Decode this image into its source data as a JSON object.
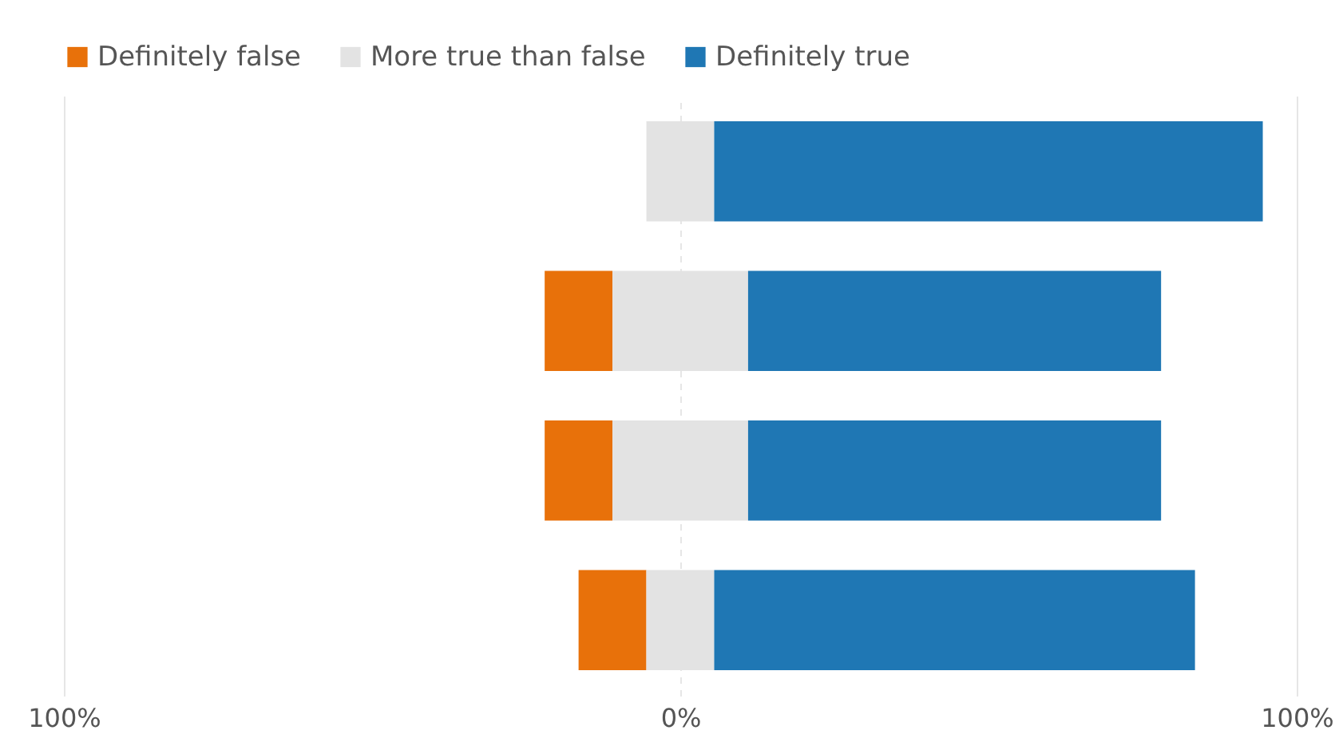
{
  "chart_data": {
    "type": "bar",
    "orientation": "horizontal",
    "categories": [
      null,
      null,
      null,
      null
    ],
    "series": [
      {
        "name": "Definitely false",
        "color": "#e8710a",
        "base": [
          null,
          -22,
          -22,
          -16.5
        ],
        "values": [
          null,
          11,
          11,
          11
        ]
      },
      {
        "name": "More true than false",
        "color": "#e3e3e3",
        "base": [
          -5.5,
          -11,
          -11,
          -5.5
        ],
        "values": [
          11,
          22,
          22,
          11
        ]
      },
      {
        "name": "Definitely true",
        "color": "#1f77b4",
        "base": [
          5.5,
          11,
          11,
          5.5
        ],
        "values": [
          89,
          67,
          67,
          78
        ]
      }
    ],
    "xlim": [
      -100,
      100
    ],
    "xticks": [
      {
        "value": -100,
        "label": "100%"
      },
      {
        "value": 0,
        "label": "0%"
      },
      {
        "value": 100,
        "label": "100%"
      }
    ],
    "grid": "x",
    "legend": "top",
    "tick_labels": "x"
  }
}
